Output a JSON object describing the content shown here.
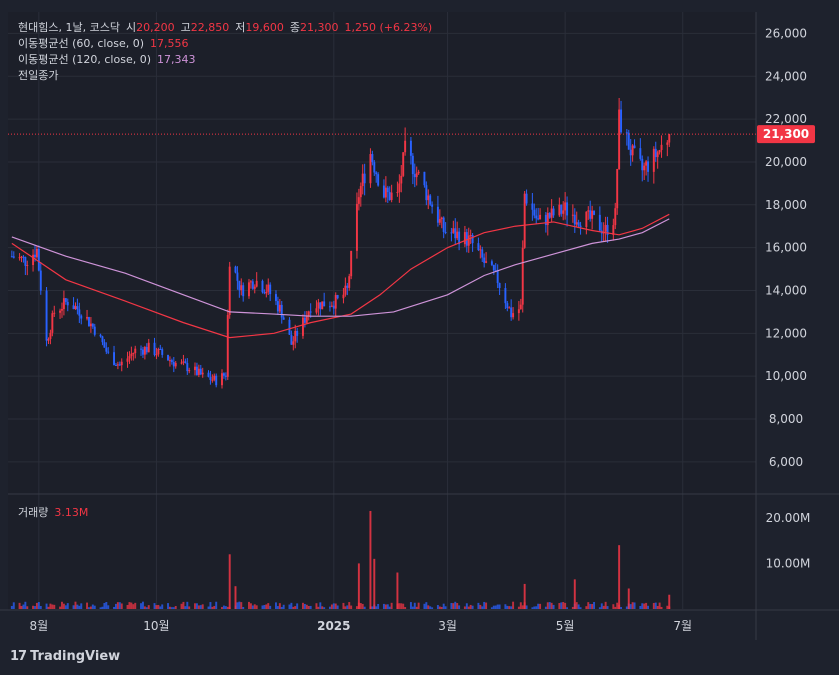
{
  "header": {
    "symbol": "현대힘스, 1날, 코스닥",
    "open_label": "시",
    "open": "20,200",
    "high_label": "고",
    "high": "22,850",
    "low_label": "저",
    "low": "19,600",
    "close_label": "종",
    "close": "21,300",
    "change": "1,250 (+6.23%)",
    "ma60_label": "이동평균선 (60, close, 0)",
    "ma60_value": "17,556",
    "ma120_label": "이동평균선 (120, close, 0)",
    "ma120_value": "17,343",
    "prev_close_label": "전일종가",
    "volume_label": "거래량",
    "volume_value": "3.13M",
    "last_price_badge": "21,300",
    "brand": "TradingView"
  },
  "colors": {
    "background": "#1e222d",
    "up": "#f23645",
    "down": "#2962ff",
    "ma60": "#f23645",
    "ma120": "#ce93d8"
  },
  "chart_data": {
    "type": "candlestick",
    "price_axis": {
      "ticks": [
        6000,
        8000,
        10000,
        12000,
        14000,
        16000,
        18000,
        20000,
        22000,
        24000,
        26000
      ],
      "tick_labels": [
        "6,000",
        "8,000",
        "10,000",
        "12,000",
        "14,000",
        "16,000",
        "18,000",
        "20,000",
        "22,000",
        "24,000",
        "26,000"
      ],
      "ylim": [
        4500,
        27000
      ]
    },
    "volume_axis": {
      "ticks": [
        10000000,
        20000000
      ],
      "tick_labels": [
        "10.00M",
        "20.00M"
      ],
      "ylim": [
        0,
        25000000
      ]
    },
    "time_axis": {
      "labels": [
        "8월",
        "10월",
        "2025",
        "3월",
        "5월",
        "7월"
      ],
      "label_dates": [
        "2024-08-01",
        "2024-10-01",
        "2025-01-01",
        "2025-03-01",
        "2025-05-01",
        "2025-07-01"
      ]
    },
    "last_price": 21300,
    "price_path": [
      [
        "2024-07-18",
        15600
      ],
      [
        "2024-07-25",
        15400
      ],
      [
        "2024-07-31",
        15900
      ],
      [
        "2024-08-05",
        11600
      ],
      [
        "2024-08-09",
        13000
      ],
      [
        "2024-08-16",
        13500
      ],
      [
        "2024-08-23",
        13000
      ],
      [
        "2024-08-30",
        12200
      ],
      [
        "2024-09-06",
        11000
      ],
      [
        "2024-09-12",
        10500
      ],
      [
        "2024-09-20",
        11200
      ],
      [
        "2024-09-27",
        11300
      ],
      [
        "2024-10-04",
        11000
      ],
      [
        "2024-10-11",
        10600
      ],
      [
        "2024-10-18",
        10400
      ],
      [
        "2024-10-25",
        10000
      ],
      [
        "2024-11-01",
        9800
      ],
      [
        "2024-11-06",
        10100
      ],
      [
        "2024-11-08",
        15500
      ],
      [
        "2024-11-14",
        14000
      ],
      [
        "2024-11-21",
        14500
      ],
      [
        "2024-11-28",
        14000
      ],
      [
        "2024-12-05",
        13000
      ],
      [
        "2024-12-10",
        11500
      ],
      [
        "2024-12-16",
        12500
      ],
      [
        "2024-12-20",
        13300
      ],
      [
        "2024-12-27",
        13400
      ],
      [
        "2025-01-03",
        13500
      ],
      [
        "2025-01-08",
        14000
      ],
      [
        "2025-01-14",
        18500
      ],
      [
        "2025-01-20",
        20400
      ],
      [
        "2025-01-27",
        18500
      ],
      [
        "2025-02-03",
        18400
      ],
      [
        "2025-02-07",
        20500
      ],
      [
        "2025-02-13",
        19500
      ],
      [
        "2025-02-20",
        18200
      ],
      [
        "2025-02-27",
        16800
      ],
      [
        "2025-03-06",
        16600
      ],
      [
        "2025-03-13",
        16300
      ],
      [
        "2025-03-20",
        15300
      ],
      [
        "2025-03-27",
        14500
      ],
      [
        "2025-04-03",
        12900
      ],
      [
        "2025-04-08",
        13200
      ],
      [
        "2025-04-10",
        18500
      ],
      [
        "2025-04-17",
        17200
      ],
      [
        "2025-04-24",
        17500
      ],
      [
        "2025-05-01",
        17800
      ],
      [
        "2025-05-08",
        17400
      ],
      [
        "2025-05-15",
        17300
      ],
      [
        "2025-05-22",
        16800
      ],
      [
        "2025-05-27",
        17500
      ],
      [
        "2025-05-29",
        22000
      ],
      [
        "2025-06-05",
        20300
      ],
      [
        "2025-06-10",
        19600
      ],
      [
        "2025-06-16",
        20200
      ],
      [
        "2025-06-20",
        20700
      ],
      [
        "2025-06-24",
        21300
      ]
    ],
    "ma60": [
      [
        "2024-07-18",
        16200
      ],
      [
        "2024-08-15",
        14500
      ],
      [
        "2024-09-15",
        13500
      ],
      [
        "2024-10-15",
        12500
      ],
      [
        "2024-11-08",
        11800
      ],
      [
        "2024-12-01",
        12000
      ],
      [
        "2024-12-20",
        12500
      ],
      [
        "2025-01-10",
        12900
      ],
      [
        "2025-01-25",
        13800
      ],
      [
        "2025-02-10",
        15000
      ],
      [
        "2025-03-01",
        16000
      ],
      [
        "2025-03-20",
        16700
      ],
      [
        "2025-04-05",
        17000
      ],
      [
        "2025-04-25",
        17200
      ],
      [
        "2025-05-15",
        16800
      ],
      [
        "2025-05-29",
        16600
      ],
      [
        "2025-06-10",
        16900
      ],
      [
        "2025-06-24",
        17556
      ]
    ],
    "ma120": [
      [
        "2024-07-18",
        16500
      ],
      [
        "2024-08-15",
        15600
      ],
      [
        "2024-09-15",
        14800
      ],
      [
        "2024-10-15",
        13800
      ],
      [
        "2024-11-08",
        13000
      ],
      [
        "2024-12-01",
        12900
      ],
      [
        "2024-12-20",
        12800
      ],
      [
        "2025-01-10",
        12800
      ],
      [
        "2025-02-01",
        13000
      ],
      [
        "2025-03-01",
        13800
      ],
      [
        "2025-03-20",
        14700
      ],
      [
        "2025-04-05",
        15200
      ],
      [
        "2025-04-25",
        15700
      ],
      [
        "2025-05-15",
        16200
      ],
      [
        "2025-05-29",
        16400
      ],
      [
        "2025-06-10",
        16700
      ],
      [
        "2025-06-24",
        17343
      ]
    ],
    "volume_spikes": [
      [
        "2024-11-08",
        12000000
      ],
      [
        "2024-11-11",
        5000000
      ],
      [
        "2025-01-14",
        10000000
      ],
      [
        "2025-01-20",
        21500000
      ],
      [
        "2025-01-22",
        11000000
      ],
      [
        "2025-02-03",
        8000000
      ],
      [
        "2025-04-10",
        5500000
      ],
      [
        "2025-05-06",
        6500000
      ],
      [
        "2025-05-29",
        14000000
      ],
      [
        "2025-06-03",
        4500000
      ],
      [
        "2025-06-24",
        3130000
      ]
    ],
    "volume_base": 900000
  }
}
